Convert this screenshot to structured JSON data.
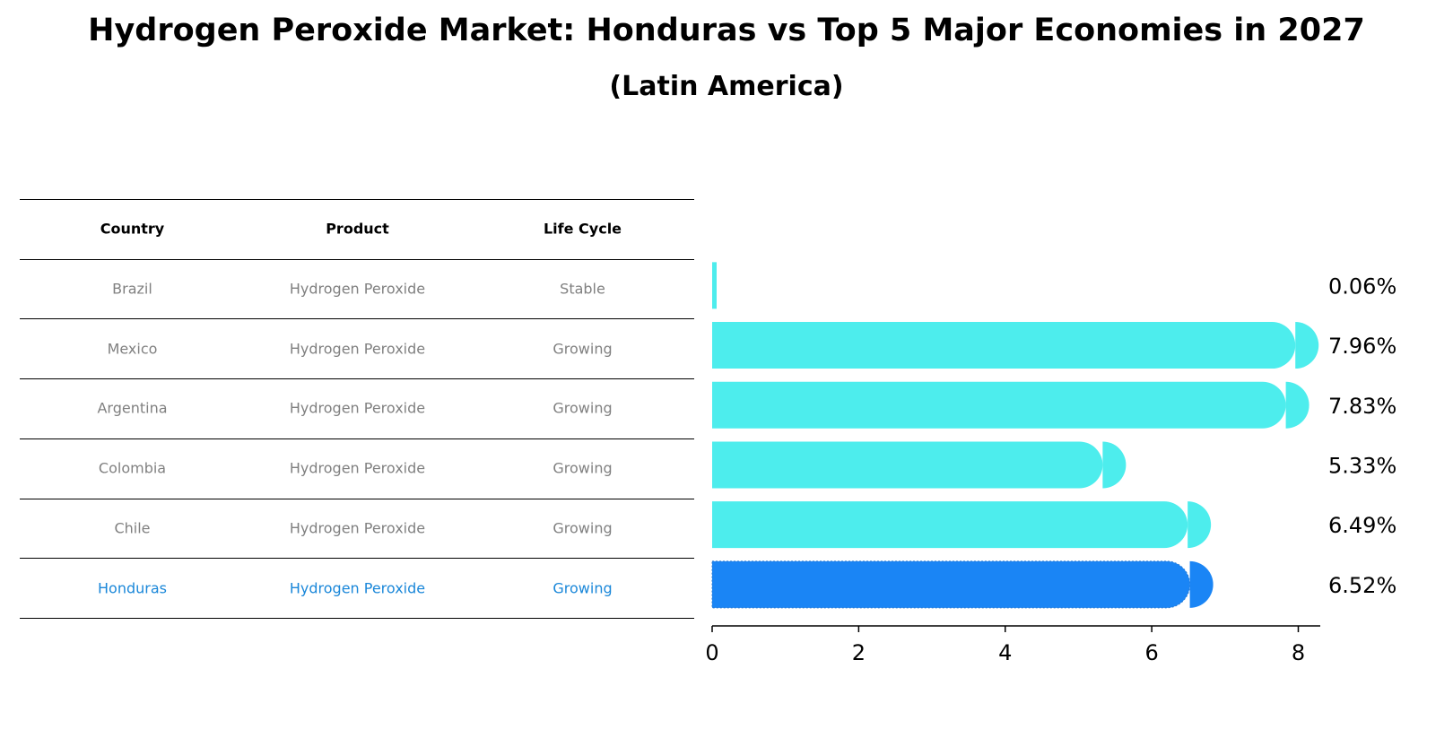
{
  "title": "Hydrogen Peroxide Market: Honduras vs Top 5 Major Economies in 2027",
  "subtitle": "(Latin America)",
  "table": {
    "headers": [
      "Country",
      "Product",
      "Life Cycle"
    ],
    "rows": [
      {
        "country": "Brazil",
        "product": "Hydrogen Peroxide",
        "life_cycle": "Stable"
      },
      {
        "country": "Mexico",
        "product": "Hydrogen Peroxide",
        "life_cycle": "Growing"
      },
      {
        "country": "Argentina",
        "product": "Hydrogen Peroxide",
        "life_cycle": "Growing"
      },
      {
        "country": "Colombia",
        "product": "Hydrogen Peroxide",
        "life_cycle": "Growing"
      },
      {
        "country": "Chile",
        "product": "Hydrogen Peroxide",
        "life_cycle": "Growing"
      },
      {
        "country": "Honduras",
        "product": "Hydrogen Peroxide",
        "life_cycle": "Growing"
      }
    ]
  },
  "chart_data": {
    "type": "bar",
    "orientation": "horizontal",
    "categories": [
      "Brazil",
      "Mexico",
      "Argentina",
      "Colombia",
      "Chile",
      "Honduras"
    ],
    "values": [
      0.06,
      7.96,
      7.83,
      5.33,
      6.49,
      6.52
    ],
    "value_labels": [
      "0.06%",
      "7.96%",
      "7.83%",
      "5.33%",
      "6.49%",
      "6.52%"
    ],
    "highlight": "Honduras",
    "xlim": [
      0,
      8.3
    ],
    "xticks": [
      0,
      2,
      4,
      6,
      8
    ],
    "colors": {
      "default": "#4deded",
      "highlight": "#1a85f5"
    }
  },
  "colors": {
    "table_text": "#808080",
    "table_highlight": "#1a87d9"
  }
}
